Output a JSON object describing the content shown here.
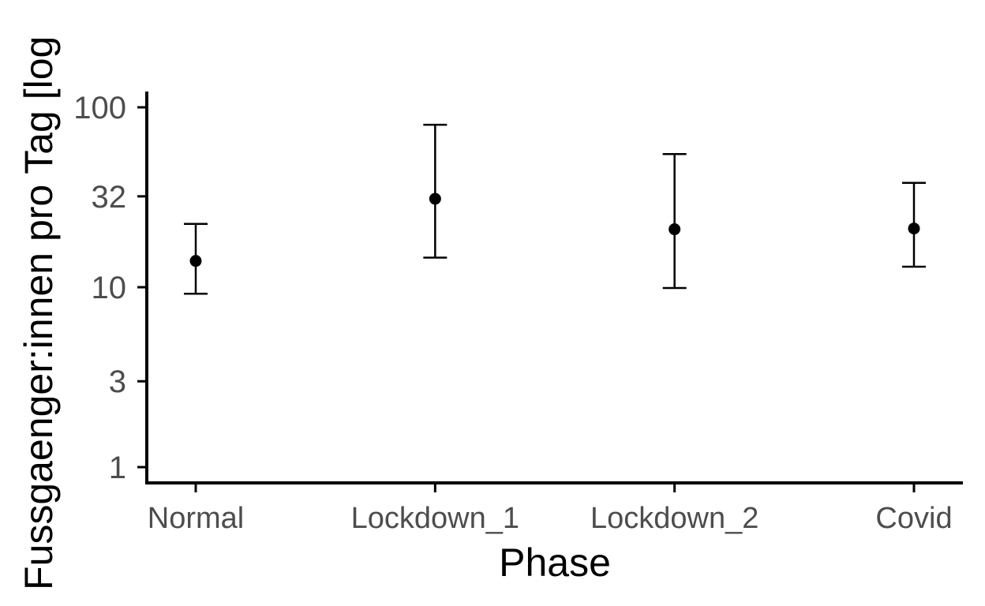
{
  "chart_data": {
    "type": "scatter",
    "title": "",
    "xlabel": "Phase",
    "ylabel": "Fussgaenger:innen pro Tag [log",
    "y_scale": "log",
    "ylim": [
      0.8,
      120
    ],
    "y_ticks": [
      {
        "value": 1,
        "label": "1"
      },
      {
        "value": 3,
        "label": "3"
      },
      {
        "value": 10,
        "label": "10"
      },
      {
        "value": 32,
        "label": "32"
      },
      {
        "value": 100,
        "label": "100"
      }
    ],
    "categories": [
      "Normal",
      "Lockdown_1",
      "Lockdown_2",
      "Covid"
    ],
    "points": [
      {
        "category": "Normal",
        "y": 14,
        "y_low": 9.2,
        "y_high": 22.5
      },
      {
        "category": "Lockdown_1",
        "y": 31,
        "y_low": 14.6,
        "y_high": 80
      },
      {
        "category": "Lockdown_2",
        "y": 21,
        "y_low": 9.9,
        "y_high": 55
      },
      {
        "category": "Covid",
        "y": 21.2,
        "y_low": 13,
        "y_high": 38
      }
    ],
    "grid": false,
    "legend": "none",
    "colors": {
      "points": "#000000",
      "axes": "#000000",
      "tick_labels": "#4d4d4d"
    }
  }
}
